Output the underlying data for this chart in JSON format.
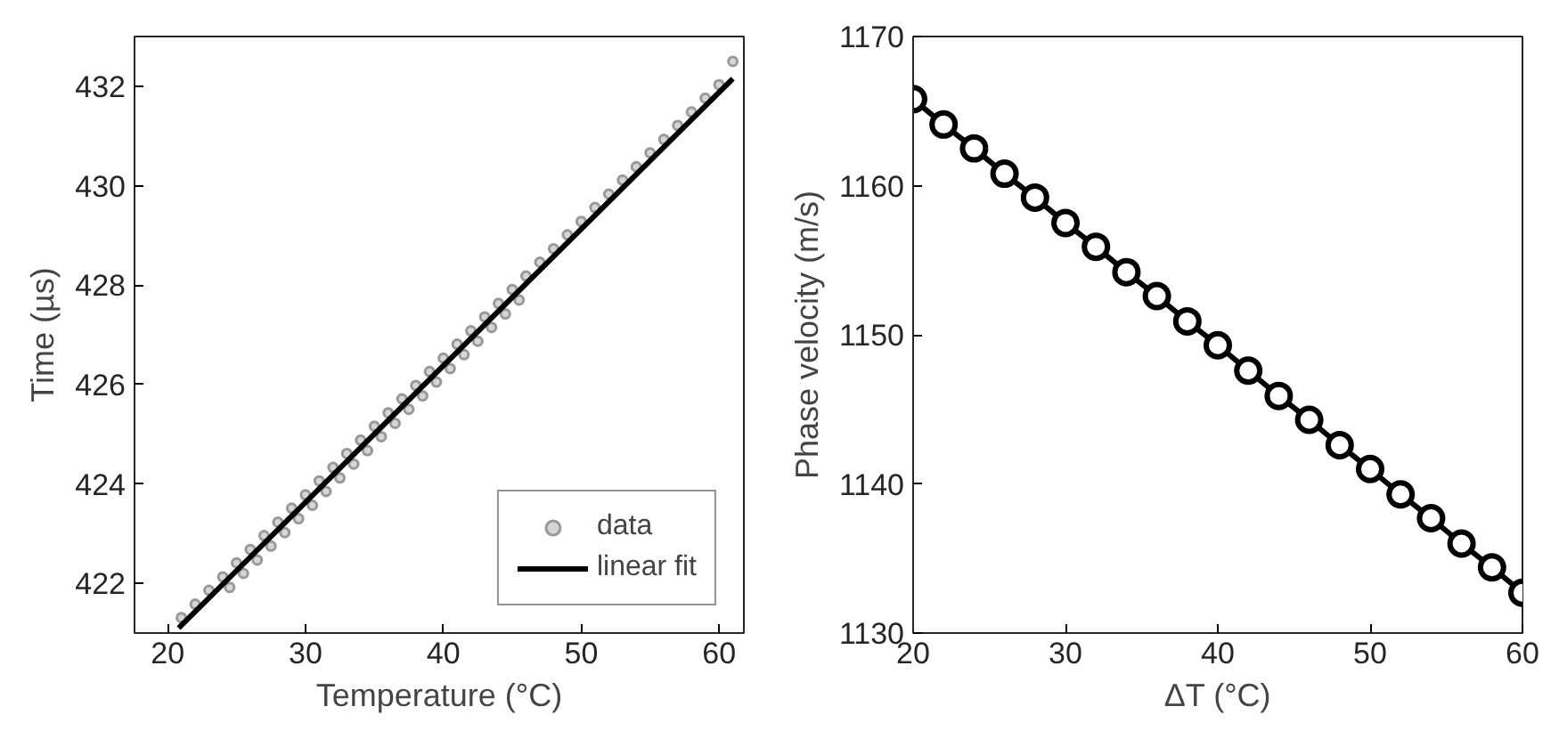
{
  "chart_data": [
    {
      "type": "scatter",
      "xlabel": "Temperature (°C)",
      "ylabel": "Time (µs)",
      "xlim": [
        17.6,
        61.8
      ],
      "ylim": [
        421,
        433
      ],
      "xticks": [
        20,
        30,
        40,
        50,
        60
      ],
      "yticks": [
        422,
        424,
        426,
        428,
        430,
        432
      ],
      "grid": false,
      "legend": "bottom right",
      "series": [
        {
          "name": "data",
          "type": "scatter",
          "marker": "circle",
          "color": "#999999",
          "x": [
            21,
            22,
            23,
            24,
            25,
            26,
            27,
            28,
            29,
            30,
            31,
            32,
            33,
            34,
            35,
            36,
            37,
            38,
            39,
            40,
            41,
            42,
            43,
            44,
            45,
            46,
            47,
            48,
            49,
            50,
            51,
            52,
            53,
            54,
            55,
            56,
            57,
            58,
            59,
            60,
            61,
            24.5,
            25.5,
            26.5,
            27.5,
            28.5,
            29.5,
            30.5,
            31.5,
            32.5,
            33.5,
            34.5,
            35.5,
            36.5,
            37.5,
            38.5,
            39.5,
            40.5,
            41.5,
            42.5,
            43.5,
            44.5,
            45.5
          ],
          "values": [
            421.31,
            421.58,
            421.86,
            422.13,
            422.41,
            422.68,
            422.96,
            423.23,
            423.51,
            423.78,
            424.06,
            424.33,
            424.61,
            424.88,
            425.16,
            425.43,
            425.71,
            425.98,
            426.26,
            426.53,
            426.81,
            427.08,
            427.36,
            427.63,
            427.91,
            428.18,
            428.46,
            428.73,
            429.01,
            429.28,
            429.56,
            429.83,
            430.11,
            430.38,
            430.66,
            430.93,
            431.21,
            431.48,
            431.76,
            432.03,
            432.5,
            421.92,
            422.2,
            422.47,
            422.75,
            423.02,
            423.3,
            423.57,
            423.85,
            424.12,
            424.4,
            424.67,
            424.95,
            425.22,
            425.5,
            425.77,
            426.05,
            426.32,
            426.6,
            426.87,
            427.15,
            427.42,
            427.7
          ]
        },
        {
          "name": "linear fit",
          "type": "line",
          "color": "#000000",
          "line_style": "solid",
          "x": [
            20.8,
            61
          ],
          "values": [
            421.1,
            432.15
          ]
        }
      ]
    },
    {
      "type": "line",
      "xlabel": "ΔT (°C)",
      "ylabel": "Phase velocity (m/s)",
      "xlim": [
        20,
        60
      ],
      "ylim": [
        1130,
        1170
      ],
      "xticks": [
        20,
        30,
        40,
        50,
        60
      ],
      "yticks": [
        1130,
        1140,
        1150,
        1160,
        1170
      ],
      "grid": false,
      "legend": false,
      "marker": "circle",
      "line_style": "solid",
      "x": [
        20,
        22,
        24,
        26,
        28,
        30,
        32,
        34,
        36,
        38,
        40,
        42,
        44,
        46,
        48,
        50,
        52,
        54,
        56,
        58,
        60
      ],
      "series": [
        {
          "color": "#000000",
          "values": [
            1165.8,
            1164.1,
            1162.5,
            1160.8,
            1159.2,
            1157.5,
            1155.9,
            1154.2,
            1152.6,
            1150.9,
            1149.3,
            1147.6,
            1145.9,
            1144.3,
            1142.6,
            1141.0,
            1139.3,
            1137.7,
            1136.0,
            1134.4,
            1132.7
          ]
        }
      ]
    }
  ]
}
